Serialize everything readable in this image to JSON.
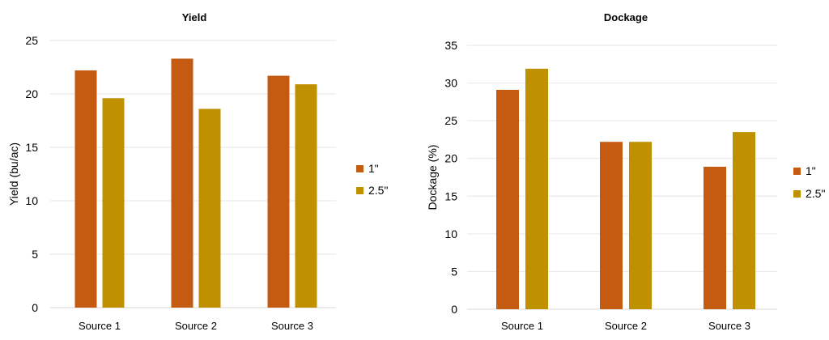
{
  "chart_data": [
    {
      "type": "bar",
      "title": "Yield",
      "xlabel": "",
      "ylabel": "Yield (bu/ac)",
      "categories": [
        "Source 1",
        "Source 2",
        "Source 3"
      ],
      "series": [
        {
          "name": "1\"",
          "values": [
            22.2,
            23.3,
            21.7
          ]
        },
        {
          "name": "2.5\"",
          "values": [
            19.6,
            18.6,
            20.9
          ]
        }
      ],
      "ylim": [
        0,
        25
      ],
      "yticks": [
        0,
        5,
        10,
        15,
        20,
        25
      ],
      "grid": true,
      "legend_position": "right"
    },
    {
      "type": "bar",
      "title": "Dockage",
      "xlabel": "",
      "ylabel": "Dockage (%)",
      "categories": [
        "Source 1",
        "Source 2",
        "Source 3"
      ],
      "series": [
        {
          "name": "1\"",
          "values": [
            29.1,
            22.2,
            18.9
          ]
        },
        {
          "name": "2.5\"",
          "values": [
            31.9,
            22.2,
            23.5
          ]
        }
      ],
      "ylim": [
        0,
        35
      ],
      "yticks": [
        0,
        5,
        10,
        15,
        20,
        25,
        30,
        35
      ],
      "grid": true,
      "legend_position": "right"
    }
  ],
  "colors": {
    "series": [
      "#C55A11",
      "#BF9000"
    ],
    "grid": "#e6e6e6",
    "axis_text": "#000000"
  }
}
